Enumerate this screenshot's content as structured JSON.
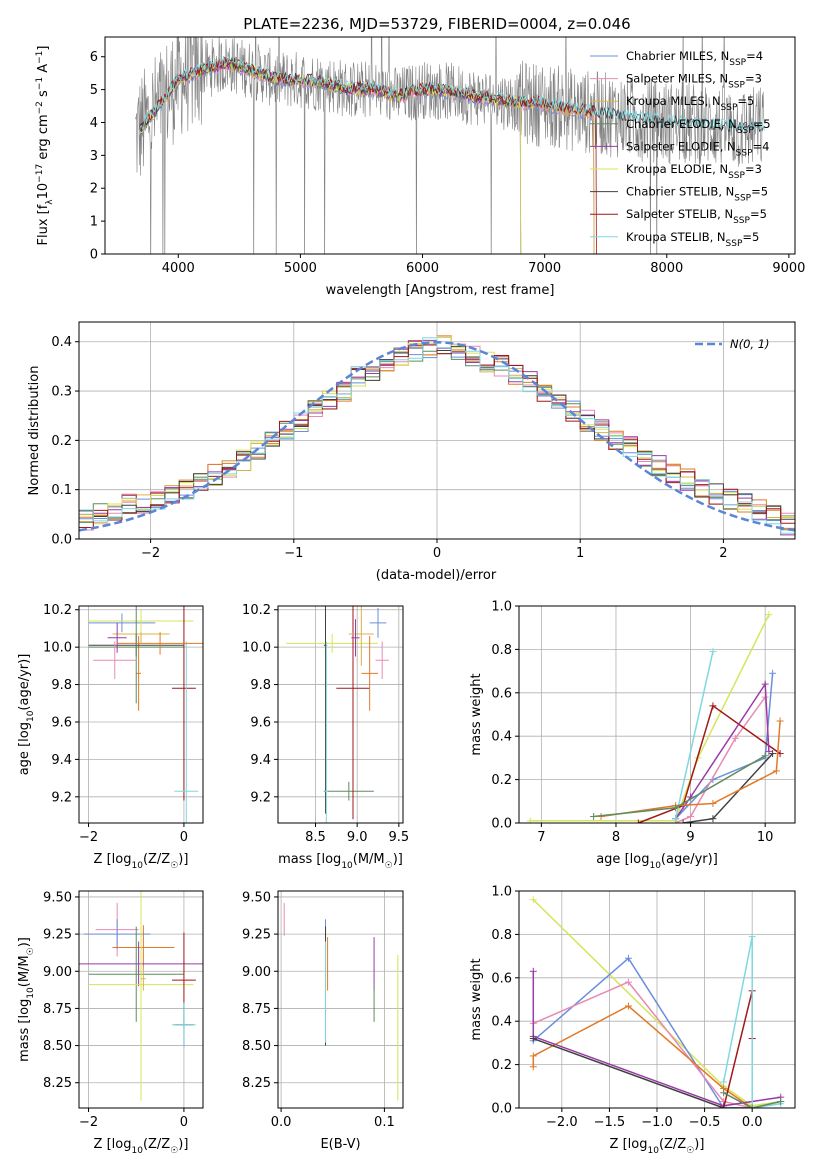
{
  "figure_title": "PLATE=2236, MJD=53729, FIBERID=0004, z=0.046",
  "colors": {
    "Chabrier MILES": "#6a8fdc",
    "Salpeter MILES": "#e88ab4",
    "Kroupa MILES": "#d9b34a",
    "Chabrier ELODIE": "#5e8c5e",
    "Salpeter ELODIE": "#9a3aa8",
    "Kroupa ELODIE": "#d6e55a",
    "Chabrier STELIB": "#404040",
    "Salpeter STELIB": "#a01818",
    "Kroupa STELIB": "#7fd8e0",
    "orange": "#e07a28",
    "data_grey": "#808080",
    "normal_curve": "#5b85d6"
  },
  "chart_data": [
    {
      "id": "spectrum",
      "type": "line",
      "title": "PLATE=2236, MJD=53729, FIBERID=0004, z=0.046",
      "xlabel": "wavelength [Angstrom, rest frame]",
      "ylabel": "Flux [f",
      "ylabel_parts": [
        "Flux [f",
        "λ",
        "10",
        "−17",
        " erg cm",
        "−2",
        " s",
        "−1",
        " A",
        "−1",
        "]"
      ],
      "xlim": [
        3400,
        9050
      ],
      "ylim": [
        0,
        6.6
      ],
      "xticks": [
        4000,
        5000,
        6000,
        7000,
        8000,
        9000
      ],
      "yticks": [
        0,
        1,
        2,
        3,
        4,
        5,
        6
      ],
      "grid": false,
      "legend_placement": "right",
      "continuum_x": [
        3650,
        3800,
        4000,
        4200,
        4400,
        4600,
        4800,
        5000,
        5200,
        5400,
        5600,
        5800,
        6000,
        6200,
        6400,
        6600,
        6800,
        7000,
        7200,
        7400,
        7600,
        7800,
        8000,
        8200,
        8400,
        8600,
        8800
      ],
      "continuum_y": [
        3.6,
        4.3,
        5.3,
        5.6,
        5.8,
        5.6,
        5.3,
        5.3,
        5.2,
        5.0,
        5.0,
        4.8,
        5.0,
        4.95,
        4.8,
        4.7,
        4.6,
        4.55,
        4.4,
        4.3,
        4.2,
        4.1,
        4.0,
        3.95,
        3.9,
        3.8,
        3.85
      ],
      "series": [
        {
          "name": "Chabrier MILES",
          "nssp": "4",
          "end_x": 7400
        },
        {
          "name": "Salpeter MILES",
          "nssp": "3",
          "end_x": 7400
        },
        {
          "name": "Kroupa MILES",
          "nssp": "5",
          "end_x": 7400
        },
        {
          "name": "Chabrier ELODIE",
          "nssp": "5",
          "end_x": 6800
        },
        {
          "name": "Salpeter ELODIE",
          "nssp": "4",
          "end_x": 6800
        },
        {
          "name": "Kroupa ELODIE",
          "nssp": "3",
          "end_x": 6800
        },
        {
          "name": "Chabrier STELIB",
          "nssp": "5",
          "end_x": 8800
        },
        {
          "name": "Salpeter STELIB",
          "nssp": "5",
          "end_x": 7420
        },
        {
          "name": "Kroupa STELIB",
          "nssp": "5",
          "end_x": 8800
        }
      ]
    },
    {
      "id": "residuals",
      "type": "line",
      "xlabel": "(data-model)/error",
      "ylabel": "Normed distribution",
      "xlim": [
        -2.5,
        2.5
      ],
      "ylim": [
        0,
        0.44
      ],
      "xticks": [
        -2,
        -1,
        0,
        1,
        2
      ],
      "yticks": [
        0.0,
        0.1,
        0.2,
        0.3,
        0.4
      ],
      "grid": true,
      "legend_placement": "top-right",
      "legend": "N(0, 1)",
      "hist_edges_start": -2.5,
      "hist_bin_width": 0.1,
      "hist_base": [
        0.04,
        0.05,
        0.06,
        0.07,
        0.07,
        0.08,
        0.09,
        0.1,
        0.12,
        0.13,
        0.14,
        0.16,
        0.18,
        0.2,
        0.22,
        0.24,
        0.26,
        0.28,
        0.3,
        0.33,
        0.34,
        0.35,
        0.37,
        0.38,
        0.39,
        0.39,
        0.38,
        0.37,
        0.36,
        0.35,
        0.33,
        0.32,
        0.3,
        0.28,
        0.26,
        0.24,
        0.22,
        0.2,
        0.19,
        0.17,
        0.15,
        0.13,
        0.12,
        0.1,
        0.09,
        0.08,
        0.07,
        0.06,
        0.05,
        0.03
      ]
    },
    {
      "id": "age_vs_Z",
      "type": "scatter",
      "xlabel": "Z [log10(Z/Z☉)]",
      "xlabel_parts": [
        "Z [log",
        "10",
        "(Z/Z",
        "☉",
        ")]"
      ],
      "ylabel": "age  [log10(age/yr)]",
      "ylabel_parts": [
        "age  [log",
        "10",
        "(age/yr)]"
      ],
      "xlim": [
        -2.2,
        0.4
      ],
      "ylim": [
        9.06,
        10.22
      ],
      "xticks": [
        -2,
        0
      ],
      "yticks": [
        9.2,
        9.4,
        9.6,
        9.8,
        10.0,
        10.2
      ],
      "grid": true,
      "points": [
        {
          "s": "Chabrier MILES",
          "x": -1.3,
          "y": 10.13,
          "xerr": 0.7,
          "yerr": 0.05
        },
        {
          "s": "Kroupa MILES",
          "x": -0.9,
          "y": 10.07,
          "xerr": 0.6,
          "yerr": 0.05
        },
        {
          "s": "Kroupa ELODIE",
          "x": -0.9,
          "y": 10.14,
          "xerr": 1.1,
          "yerr": 0.06
        },
        {
          "s": "orange",
          "x": -0.95,
          "y": 9.86,
          "xerr": 0.05,
          "yerr": 0.2
        },
        {
          "s": "Chabrier STELIB",
          "x": -1.0,
          "y": 10.01,
          "xerr": 1.0,
          "yerr": 0.06
        },
        {
          "s": "Chabrier ELODIE",
          "x": -1.0,
          "y": 10.0,
          "xerr": 1.0,
          "yerr": 0.3
        },
        {
          "s": "Salpeter MILES",
          "x": -1.45,
          "y": 9.93,
          "xerr": 0.45,
          "yerr": 0.1
        },
        {
          "s": "Salpeter ELODIE",
          "x": -1.4,
          "y": 10.05,
          "xerr": 0.2,
          "yerr": 0.08
        },
        {
          "s": "Salpeter STELIB",
          "x": 0.0,
          "y": 9.78,
          "xerr": 0.25,
          "yerr": 0.6
        },
        {
          "s": "Kroupa STELIB",
          "x": 0.05,
          "y": 9.23,
          "xerr": 0.25,
          "yerr": 0.8
        },
        {
          "s": "orange",
          "x": -0.5,
          "y": 10.02,
          "xerr": 0.9,
          "yerr": 0.06
        }
      ]
    },
    {
      "id": "age_vs_mass",
      "type": "scatter",
      "xlabel": "mass [log10(M/M☉)]",
      "xlabel_parts": [
        "mass [log",
        "10",
        "(M/M",
        "☉",
        ")]"
      ],
      "xlim": [
        8.05,
        9.55
      ],
      "ylim": [
        9.06,
        10.22
      ],
      "xticks": [
        8.5,
        9.0,
        9.5
      ],
      "yticks": [
        9.2,
        9.4,
        9.6,
        9.8,
        10.0,
        10.2
      ],
      "grid": true,
      "points": [
        {
          "s": "Kroupa ELODIE",
          "x": 8.7,
          "y": 10.02,
          "xerr": 0.55,
          "yerr": 0.05
        },
        {
          "s": "Chabrier STELIB",
          "x": 8.62,
          "y": 10.01,
          "xerr": 0.02,
          "yerr": 0.9
        },
        {
          "s": "Chabrier ELODIE",
          "x": 8.9,
          "y": 9.23,
          "xerr": 0.3,
          "yerr": 0.05
        },
        {
          "s": "Salpeter STELIB",
          "x": 8.95,
          "y": 9.78,
          "xerr": 0.2,
          "yerr": 0.7
        },
        {
          "s": "Kroupa MILES",
          "x": 9.05,
          "y": 10.07,
          "xerr": 0.15,
          "yerr": 0.17
        },
        {
          "s": "orange",
          "x": 9.15,
          "y": 9.86,
          "xerr": 0.1,
          "yerr": 0.2
        },
        {
          "s": "Chabrier MILES",
          "x": 9.25,
          "y": 10.13,
          "xerr": 0.1,
          "yerr": 0.08
        },
        {
          "s": "Salpeter MILES",
          "x": 9.3,
          "y": 9.93,
          "xerr": 0.08,
          "yerr": 0.1
        },
        {
          "s": "Kroupa STELIB",
          "x": 8.63,
          "y": 9.23,
          "xerr": 0.02,
          "yerr": 0.8
        },
        {
          "s": "Salpeter ELODIE",
          "x": 8.98,
          "y": 10.05,
          "xerr": 0.05,
          "yerr": 0.1
        }
      ]
    },
    {
      "id": "mass_weight_vs_age",
      "type": "line",
      "xlabel": "age  [log10(age/yr)]",
      "xlabel_parts": [
        "age  [log",
        "10",
        "(age/yr)]"
      ],
      "ylabel": "mass weight",
      "xlim": [
        6.7,
        10.4
      ],
      "ylim": [
        0,
        1
      ],
      "xticks": [
        7,
        8,
        9,
        10
      ],
      "yticks": [
        0.0,
        0.2,
        0.4,
        0.6,
        0.8,
        1.0
      ],
      "grid": true,
      "series": [
        {
          "s": "Chabrier MILES",
          "x": [
            8.8,
            9.3,
            10.0,
            10.1
          ],
          "y": [
            0.02,
            0.2,
            0.3,
            0.69
          ]
        },
        {
          "s": "Salpeter MILES",
          "x": [
            8.8,
            9.0,
            9.6,
            10.0
          ],
          "y": [
            0.0,
            0.03,
            0.39,
            0.58
          ]
        },
        {
          "s": "Kroupa ELODIE",
          "x": [
            6.85,
            8.8,
            9.1,
            10.05
          ],
          "y": [
            0.01,
            0.01,
            0.3,
            0.96
          ]
        },
        {
          "s": "Chabrier STELIB",
          "x": [
            8.9,
            9.3,
            10.1
          ],
          "y": [
            0.0,
            0.02,
            0.32
          ]
        },
        {
          "s": "Salpeter STELIB",
          "x": [
            8.3,
            8.9,
            9.3,
            10.2
          ],
          "y": [
            0.0,
            0.08,
            0.54,
            0.32
          ]
        },
        {
          "s": "Salpeter ELODIE",
          "x": [
            8.8,
            9.0,
            10.0,
            10.05
          ],
          "y": [
            0.02,
            0.12,
            0.64,
            0.33
          ]
        },
        {
          "s": "Kroupa STELIB",
          "x": [
            8.8,
            9.3
          ],
          "y": [
            0.02,
            0.79
          ]
        },
        {
          "s": "orange",
          "x": [
            7.8,
            8.8,
            9.3,
            10.15,
            10.2
          ],
          "y": [
            0.03,
            0.08,
            0.09,
            0.24,
            0.47
          ]
        },
        {
          "s": "Chabrier ELODIE",
          "x": [
            7.7,
            8.8,
            10.0
          ],
          "y": [
            0.03,
            0.07,
            0.31
          ]
        }
      ]
    },
    {
      "id": "mass_vs_Z",
      "type": "scatter",
      "xlabel": "Z [log10(Z/Z☉)]",
      "xlabel_parts": [
        "Z [log",
        "10",
        "(Z/Z",
        "☉",
        ")]"
      ],
      "ylabel": "mass [log10(M/M☉)]",
      "ylabel_parts": [
        "mass [log",
        "10",
        "(M/M",
        "☉",
        ")]"
      ],
      "xlim": [
        -2.2,
        0.4
      ],
      "ylim": [
        8.08,
        9.54
      ],
      "xticks": [
        -2,
        0
      ],
      "yticks": [
        8.25,
        8.5,
        8.75,
        9.0,
        9.25,
        9.5
      ],
      "grid": true,
      "points": [
        {
          "s": "Salpeter MILES",
          "x": -1.4,
          "y": 9.28,
          "xerr": 0.45,
          "yerr": 0.18
        },
        {
          "s": "Chabrier MILES",
          "x": -1.4,
          "y": 9.25,
          "xerr": 0.7,
          "yerr": 0.1
        },
        {
          "s": "orange",
          "x": -0.85,
          "y": 9.16,
          "xerr": 0.65,
          "yerr": 0.15
        },
        {
          "s": "Salpeter ELODIE",
          "x": -0.95,
          "y": 9.05,
          "xerr": 1.35,
          "yerr": 0.15
        },
        {
          "s": "Chabrier ELODIE",
          "x": -1.0,
          "y": 8.98,
          "xerr": 1.0,
          "yerr": 0.32
        },
        {
          "s": "Kroupa ELODIE",
          "x": -0.9,
          "y": 8.91,
          "xerr": 1.1,
          "yerr": 0.78
        },
        {
          "s": "Salpeter STELIB",
          "x": 0.0,
          "y": 8.94,
          "xerr": 0.25,
          "yerr": 0.32
        },
        {
          "s": "Chabrier STELIB",
          "x": 0.0,
          "y": 8.64,
          "xerr": 0.2,
          "yerr": 0.15
        },
        {
          "s": "Kroupa STELIB",
          "x": 0.0,
          "y": 8.64,
          "xerr": 0.25,
          "yerr": 0.15
        },
        {
          "s": "Kroupa MILES",
          "x": -0.85,
          "y": 8.95,
          "xerr": 0.05,
          "yerr": 0.08
        }
      ]
    },
    {
      "id": "mass_vs_ebv",
      "type": "scatter",
      "xlabel": "E(B-V)",
      "xlim": [
        -0.003,
        0.118
      ],
      "ylim": [
        8.08,
        9.54
      ],
      "xticks": [
        0.0,
        0.1
      ],
      "yticks": [
        8.25,
        8.5,
        8.75,
        9.0,
        9.25,
        9.5
      ],
      "grid": true,
      "points": [
        {
          "s": "Salpeter MILES",
          "x": 0.003,
          "y": 9.35,
          "xerr": 0,
          "yerr": 0.11
        },
        {
          "s": "Chabrier MILES",
          "x": 0.043,
          "y": 9.25,
          "xerr": 0,
          "yerr": 0.1
        },
        {
          "s": "Chabrier STELIB",
          "x": 0.043,
          "y": 8.9,
          "xerr": 0,
          "yerr": 0.4
        },
        {
          "s": "Kroupa STELIB",
          "x": 0.043,
          "y": 8.86,
          "xerr": 0,
          "yerr": 0.34
        },
        {
          "s": "orange",
          "x": 0.045,
          "y": 9.05,
          "xerr": 0,
          "yerr": 0.18
        },
        {
          "s": "Salpeter ELODIE",
          "x": 0.09,
          "y": 9.05,
          "xerr": 0,
          "yerr": 0.18
        },
        {
          "s": "Chabrier ELODIE",
          "x": 0.09,
          "y": 8.78,
          "xerr": 0,
          "yerr": 0.12
        },
        {
          "s": "Kroupa ELODIE",
          "x": 0.113,
          "y": 8.62,
          "xerr": 0,
          "yerr": 0.49
        }
      ]
    },
    {
      "id": "mass_weight_vs_Z",
      "type": "line",
      "xlabel": "Z [log10(Z/Z☉)]",
      "xlabel_parts": [
        "Z [log",
        "10",
        "(Z/Z",
        "☉",
        ")]"
      ],
      "ylabel": "mass weight",
      "xlim": [
        -2.45,
        0.45
      ],
      "ylim": [
        0,
        1
      ],
      "xticks": [
        -2.0,
        -1.5,
        -1.0,
        -0.5,
        0.0
      ],
      "xtick_labels": [
        "−2.0",
        "−1.5",
        "−1.0",
        "−0.5",
        "0.0"
      ],
      "yticks": [
        0.0,
        0.2,
        0.4,
        0.6,
        0.8,
        1.0
      ],
      "grid": true,
      "series": [
        {
          "s": "Kroupa ELODIE",
          "x": [
            -2.3,
            -0.3,
            0.0,
            0.3
          ],
          "y": [
            0.96,
            0.1,
            0.01,
            0.03
          ]
        },
        {
          "s": "Chabrier MILES",
          "x": [
            -2.3,
            -1.3,
            -0.3,
            0.0
          ],
          "y": [
            0.31,
            0.69,
            0.0,
            0.0
          ]
        },
        {
          "s": "Salpeter MILES",
          "x": [
            -2.3,
            -1.3,
            -0.3,
            0.0
          ],
          "y": [
            0.39,
            0.58,
            0.03,
            0.0
          ]
        },
        {
          "s": "orange",
          "x": [
            -2.3,
            -2.3,
            -1.3,
            -0.3,
            0.0
          ],
          "y": [
            0.19,
            0.24,
            0.47,
            0.09,
            0.0
          ]
        },
        {
          "s": "Salpeter ELODIE",
          "x": [
            -2.3,
            -2.3,
            -0.3,
            0.3
          ],
          "y": [
            0.63,
            0.33,
            0.01,
            0.05
          ]
        },
        {
          "s": "Chabrier STELIB",
          "x": [
            -2.3,
            -0.3,
            0.0
          ],
          "y": [
            0.32,
            0.0,
            0.0
          ]
        },
        {
          "s": "Salpeter STELIB",
          "x": [
            -0.3,
            0.0,
            0.0
          ],
          "y": [
            0.0,
            0.54,
            0.32
          ]
        },
        {
          "s": "Kroupa STELIB",
          "x": [
            -0.3,
            0.0,
            0.0,
            0.3
          ],
          "y": [
            0.12,
            0.79,
            0.0,
            0.02
          ]
        },
        {
          "s": "Chabrier ELODIE",
          "x": [
            -0.3,
            0.0,
            0.3
          ],
          "y": [
            0.07,
            0.0,
            0.03
          ]
        }
      ]
    }
  ]
}
